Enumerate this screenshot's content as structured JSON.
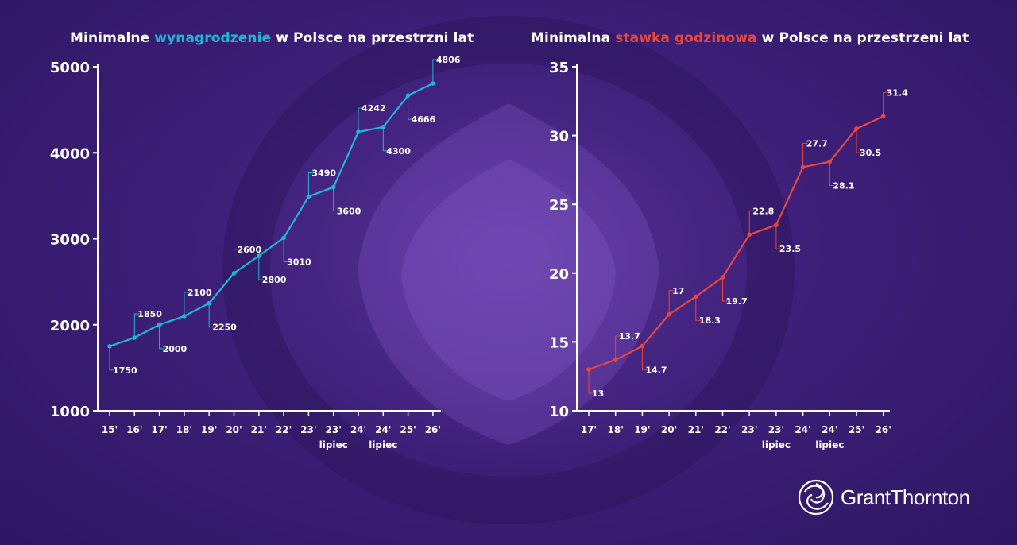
{
  "colors": {
    "blue": "#1fb6d8",
    "red": "#e8473f",
    "axis": "#ffffff"
  },
  "logo": {
    "text": "GrantThornton",
    "icon": "grant-thornton-swirl-icon"
  },
  "chart_data": [
    {
      "type": "line",
      "title_parts": [
        "Minimalne ",
        "wynagrodzenie",
        " w Polsce na przestrzni lat"
      ],
      "xlabel": "",
      "ylabel": "",
      "ylim": [
        1000,
        5000
      ],
      "yticks": [
        1000,
        2000,
        3000,
        4000,
        5000
      ],
      "categories": [
        "15'",
        "16'",
        "17'",
        "18'",
        "19'",
        "20'",
        "21'",
        "22'",
        "23'",
        "23'",
        "24'",
        "24'",
        "25'",
        "26'"
      ],
      "sublabels": [
        "",
        "",
        "",
        "",
        "",
        "",
        "",
        "",
        "",
        "lipiec",
        "",
        "lipiec",
        "",
        ""
      ],
      "series": [
        {
          "values": [
            1750,
            1850,
            2000,
            2100,
            2250,
            2600,
            2800,
            3010,
            3490,
            3600,
            4242,
            4300,
            4666,
            4806
          ]
        }
      ],
      "labels": [
        "1750",
        "1850",
        "2000",
        "2100",
        "2250",
        "2600",
        "2800",
        "3010",
        "3490",
        "3600",
        "4242",
        "4300",
        "4666",
        "4806"
      ],
      "label_side": [
        "down",
        "up",
        "down",
        "up",
        "down",
        "up",
        "down",
        "down",
        "up",
        "down",
        "up",
        "down",
        "down",
        "up"
      ],
      "color": "#1fb6d8",
      "grid": false
    },
    {
      "type": "line",
      "title_parts": [
        "Minimalna ",
        "stawka godzinowa",
        " w Polsce na przestrzeni lat"
      ],
      "xlabel": "",
      "ylabel": "",
      "ylim": [
        10,
        35
      ],
      "yticks": [
        10,
        15,
        20,
        25,
        30,
        35
      ],
      "categories": [
        "17'",
        "18'",
        "19'",
        "20'",
        "21'",
        "22'",
        "23'",
        "23'",
        "24'",
        "24'",
        "25'",
        "26'"
      ],
      "sublabels": [
        "",
        "",
        "",
        "",
        "",
        "",
        "",
        "lipiec",
        "",
        "lipiec",
        "",
        ""
      ],
      "series": [
        {
          "values": [
            13,
            13.7,
            14.7,
            17,
            18.3,
            19.7,
            22.8,
            23.5,
            27.7,
            28.1,
            30.5,
            31.4
          ]
        }
      ],
      "labels": [
        "13",
        "13.7",
        "14.7",
        "17",
        "18.3",
        "19.7",
        "22.8",
        "23.5",
        "27.7",
        "28.1",
        "30.5",
        "31.4"
      ],
      "label_side": [
        "down",
        "up",
        "down",
        "up",
        "down",
        "down",
        "up",
        "down",
        "up",
        "down",
        "down",
        "up"
      ],
      "color": "#e8473f",
      "grid": false
    }
  ]
}
